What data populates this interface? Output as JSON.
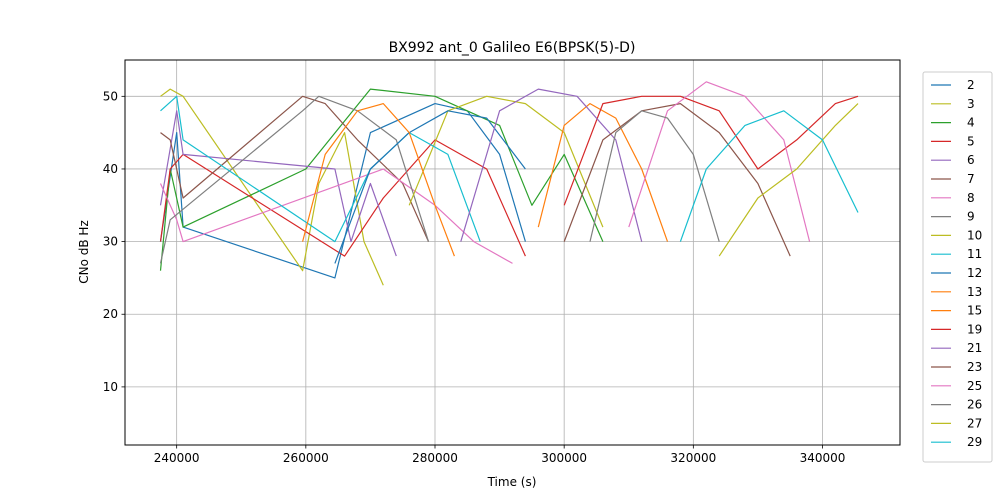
{
  "chart_data": {
    "type": "line",
    "title": "BX992 ant_0 Galileo E6(BPSK(5)-D)",
    "xlabel": "Time (s)",
    "ylabel": "CNo dB Hz",
    "xlim": [
      232000,
      352000
    ],
    "ylim": [
      2,
      55
    ],
    "xticks": [
      240000,
      260000,
      280000,
      300000,
      320000,
      340000
    ],
    "yticks": [
      10,
      20,
      30,
      40,
      50
    ],
    "grid": true,
    "legend_position": "right-outside",
    "series": [
      {
        "name": "2",
        "color": "#1f77b4",
        "x": [
          237500,
          240000,
          241000,
          264500,
          270000,
          280000,
          285000,
          290000,
          294000
        ],
        "y": [
          30,
          45,
          32,
          25,
          45,
          49,
          48,
          42,
          30
        ]
      },
      {
        "name": "3",
        "color": "#bcbd22",
        "x": [
          237500,
          239000,
          241000,
          259500,
          262000,
          266000,
          269000,
          272000
        ],
        "y": [
          50,
          51,
          50,
          26,
          38,
          45,
          30,
          24
        ]
      },
      {
        "name": "4",
        "color": "#2ca02c",
        "x": [
          237500,
          239000,
          241000,
          260000,
          270000,
          280000,
          290000,
          295000,
          300000,
          306000
        ],
        "y": [
          26,
          40,
          32,
          40,
          51,
          50,
          46,
          35,
          42,
          30
        ]
      },
      {
        "name": "5",
        "color": "#d62728",
        "x": [
          237500,
          239000,
          241000,
          266000,
          272000,
          280000,
          288000,
          294000
        ],
        "y": [
          30,
          40,
          42,
          28,
          36,
          44,
          40,
          28
        ]
      },
      {
        "name": "6",
        "color": "#9467bd",
        "x": [
          237500,
          240000,
          241000,
          264500,
          267000,
          270000,
          274000
        ],
        "y": [
          35,
          48,
          42,
          40,
          30,
          38,
          28
        ]
      },
      {
        "name": "7",
        "color": "#8c564b",
        "x": [
          237500,
          239000,
          241000,
          259500,
          263000,
          268000,
          275000,
          279000
        ],
        "y": [
          45,
          44,
          36,
          50,
          49,
          44,
          38,
          30
        ]
      },
      {
        "name": "8",
        "color": "#e377c2",
        "x": [
          237500,
          240000,
          241000,
          272000,
          280000,
          286000,
          292000
        ],
        "y": [
          38,
          33,
          30,
          40,
          35,
          30,
          27
        ]
      },
      {
        "name": "9",
        "color": "#7f7f7f",
        "x": [
          237500,
          239000,
          259500,
          262000,
          268000,
          274000,
          279000
        ],
        "y": [
          27,
          33,
          48,
          50,
          48,
          44,
          30
        ]
      },
      {
        "name": "10",
        "color": "#bcbd22",
        "x": [
          276000,
          282000,
          288000,
          294000,
          300000,
          306000
        ],
        "y": [
          35,
          48,
          50,
          49,
          45,
          32
        ]
      },
      {
        "name": "11",
        "color": "#17becf",
        "x": [
          237500,
          240000,
          241000,
          264500,
          270000,
          276000,
          282000,
          287000
        ],
        "y": [
          48,
          50,
          44,
          30,
          40,
          45,
          42,
          30
        ]
      },
      {
        "name": "12",
        "color": "#1f77b4",
        "x": [
          264500,
          270000,
          276000,
          282000,
          288000,
          294000
        ],
        "y": [
          27,
          40,
          45,
          48,
          47,
          40
        ]
      },
      {
        "name": "13",
        "color": "#ff7f0e",
        "x": [
          259500,
          263000,
          268000,
          272000,
          276000,
          280000,
          283000
        ],
        "y": [
          30,
          42,
          48,
          49,
          45,
          35,
          28
        ]
      },
      {
        "name": "15",
        "color": "#ff7f0e",
        "x": [
          296000,
          300000,
          304000,
          308000,
          312000,
          316000
        ],
        "y": [
          32,
          46,
          49,
          47,
          40,
          30
        ]
      },
      {
        "name": "19",
        "color": "#d62728",
        "x": [
          300000,
          306000,
          312000,
          318000,
          324000,
          330000,
          336000,
          342000,
          345500
        ],
        "y": [
          35,
          49,
          50,
          50,
          48,
          40,
          44,
          49,
          50
        ]
      },
      {
        "name": "21",
        "color": "#9467bd",
        "x": [
          284000,
          290000,
          296000,
          302000,
          308000,
          312000
        ],
        "y": [
          30,
          48,
          51,
          50,
          44,
          30
        ]
      },
      {
        "name": "23",
        "color": "#8c564b",
        "x": [
          300000,
          306000,
          312000,
          318000,
          324000,
          330000,
          335000
        ],
        "y": [
          30,
          44,
          48,
          49,
          45,
          38,
          28
        ]
      },
      {
        "name": "25",
        "color": "#e377c2",
        "x": [
          310000,
          316000,
          322000,
          328000,
          334000,
          338000
        ],
        "y": [
          32,
          48,
          52,
          50,
          44,
          30
        ]
      },
      {
        "name": "26",
        "color": "#7f7f7f",
        "x": [
          304000,
          308000,
          312000,
          316000,
          320000,
          324000
        ],
        "y": [
          30,
          45,
          48,
          47,
          42,
          30
        ]
      },
      {
        "name": "27",
        "color": "#bcbd22",
        "x": [
          324000,
          330000,
          336000,
          342000,
          345500
        ],
        "y": [
          28,
          36,
          40,
          46,
          49
        ]
      },
      {
        "name": "29",
        "color": "#17becf",
        "x": [
          318000,
          322000,
          328000,
          334000,
          340000,
          345500
        ],
        "y": [
          30,
          40,
          46,
          48,
          44,
          34
        ]
      }
    ]
  }
}
